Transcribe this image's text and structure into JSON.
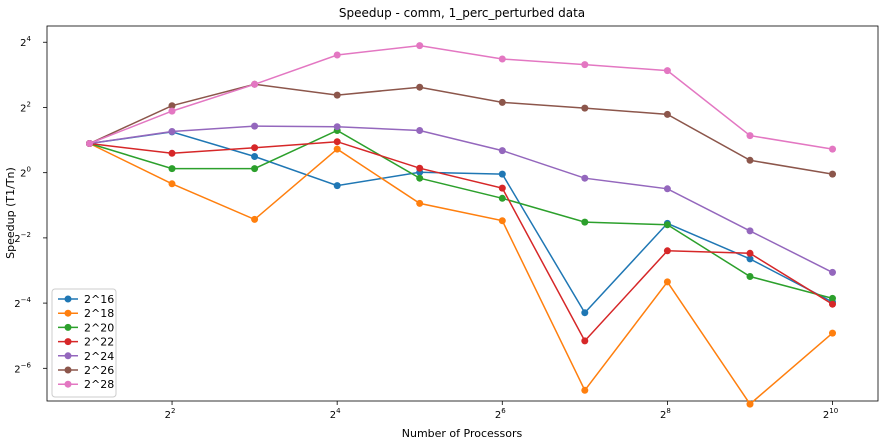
{
  "chart_data": {
    "type": "line",
    "title": "Speedup - comm, 1_perc_perturbed data",
    "xlabel": "Number of Processors",
    "ylabel": "Speedup (T1/Tn)",
    "xscale": "log2",
    "yscale": "log2",
    "x": [
      2,
      4,
      8,
      16,
      32,
      64,
      128,
      256,
      512,
      1024
    ],
    "x_ticks": [
      {
        "base": "2",
        "exp": "2",
        "value": 4
      },
      {
        "base": "2",
        "exp": "4",
        "value": 16
      },
      {
        "base": "2",
        "exp": "6",
        "value": 64
      },
      {
        "base": "2",
        "exp": "8",
        "value": 256
      },
      {
        "base": "2",
        "exp": "10",
        "value": 1024
      }
    ],
    "y_ticks": [
      {
        "base": "2",
        "exp": "4",
        "value": 16
      },
      {
        "base": "2",
        "exp": "2",
        "value": 4
      },
      {
        "base": "2",
        "exp": "0",
        "value": 1
      },
      {
        "base": "2",
        "exp": "−2",
        "value": 0.25
      },
      {
        "base": "2",
        "exp": "−4",
        "value": 0.0625
      },
      {
        "base": "2",
        "exp": "−6",
        "value": 0.015625
      }
    ],
    "xlim": [
      1.4,
      1500
    ],
    "ylim": [
      0.0078,
      22.6
    ],
    "grid": false,
    "legend_position": "lower-left",
    "series": [
      {
        "name": "2^16",
        "color": "#1f77b4",
        "values": [
          1.86,
          2.38,
          1.41,
          0.76,
          1.01,
          0.97,
          0.051,
          0.34,
          0.16,
          0.064
        ]
      },
      {
        "name": "2^18",
        "color": "#ff7f0e",
        "values": [
          1.86,
          0.79,
          0.37,
          1.65,
          0.52,
          0.36,
          0.0098,
          0.098,
          0.0073,
          0.033
        ]
      },
      {
        "name": "2^20",
        "color": "#2ca02c",
        "values": [
          1.86,
          1.09,
          1.09,
          2.45,
          0.89,
          0.58,
          0.35,
          0.33,
          0.11,
          0.069
        ]
      },
      {
        "name": "2^22",
        "color": "#d62728",
        "values": [
          1.86,
          1.51,
          1.7,
          1.93,
          1.1,
          0.72,
          0.028,
          0.19,
          0.18,
          0.061
        ]
      },
      {
        "name": "2^24",
        "color": "#9467bd",
        "values": [
          1.86,
          2.4,
          2.69,
          2.66,
          2.45,
          1.6,
          0.89,
          0.71,
          0.29,
          0.12
        ]
      },
      {
        "name": "2^26",
        "color": "#8c564b",
        "values": [
          1.86,
          4.15,
          6.55,
          5.2,
          6.15,
          4.45,
          3.95,
          3.45,
          1.3,
          0.97
        ]
      },
      {
        "name": "2^28",
        "color": "#e377c2",
        "values": [
          1.86,
          3.7,
          6.55,
          12.2,
          14.9,
          11.2,
          9.95,
          8.75,
          2.2,
          1.65
        ]
      }
    ]
  }
}
